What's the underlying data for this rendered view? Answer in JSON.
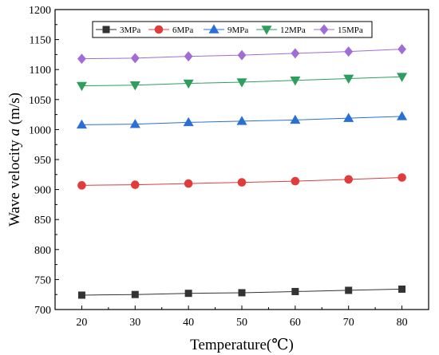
{
  "chart_data": {
    "type": "line",
    "xlabel": "Temperature",
    "xlabel_unit": "(℃)",
    "ylabel_prefix": "Wave velocity ",
    "ylabel_symbol": "a",
    "ylabel_unit": " (m/s)",
    "x": [
      20,
      30,
      40,
      50,
      60,
      70,
      80
    ],
    "xlim": [
      15,
      85
    ],
    "ylim": [
      700,
      1200
    ],
    "xticks": [
      20,
      30,
      40,
      50,
      60,
      70,
      80
    ],
    "yticks": [
      700,
      750,
      800,
      850,
      900,
      950,
      1000,
      1050,
      1100,
      1150,
      1200
    ],
    "grid": false,
    "legend_position": "top",
    "series": [
      {
        "name": "3MPa",
        "color": "#333333",
        "marker": "square",
        "values": [
          724,
          725,
          727,
          728,
          730,
          732,
          734
        ]
      },
      {
        "name": "6MPa",
        "color": "#e03c3c",
        "marker": "circle",
        "values": [
          907,
          908,
          910,
          912,
          914,
          917,
          920
        ]
      },
      {
        "name": "9MPa",
        "color": "#2a6fd6",
        "marker": "triangle-up",
        "values": [
          1008,
          1009,
          1012,
          1014,
          1016,
          1019,
          1022
        ]
      },
      {
        "name": "12MPa",
        "color": "#2e9e5e",
        "marker": "triangle-down",
        "values": [
          1073,
          1074,
          1077,
          1079,
          1082,
          1085,
          1088
        ]
      },
      {
        "name": "15MPa",
        "color": "#a06cd6",
        "marker": "diamond",
        "values": [
          1118,
          1119,
          1122,
          1124,
          1127,
          1130,
          1134
        ]
      }
    ]
  }
}
